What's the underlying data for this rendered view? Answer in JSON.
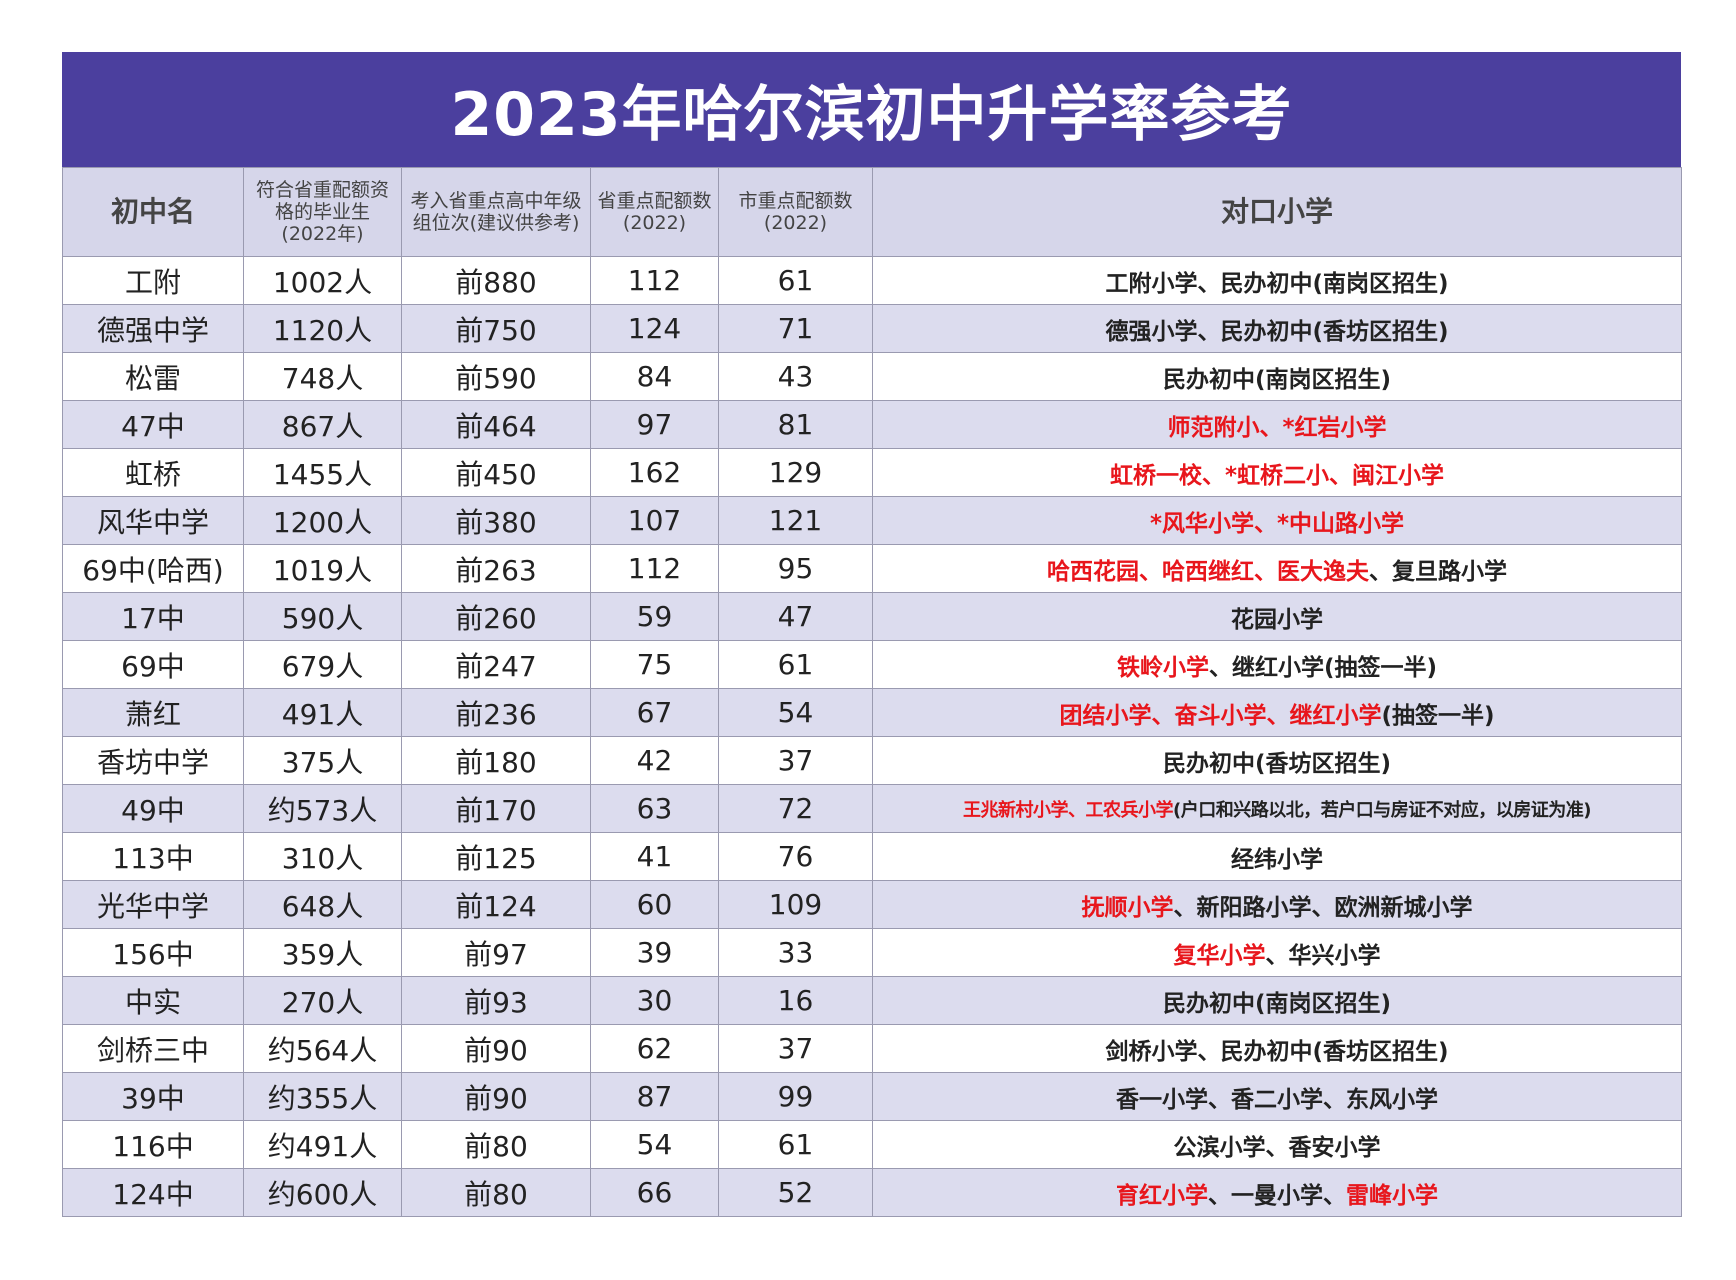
{
  "title": "2023年哈尔滨初中升学率参考",
  "table": {
    "header": [
      "初中名",
      "符合省重配额资格的毕业生(2022年)",
      "考入省重点高中年级组位次(建议供参考)",
      "省重点配额数(2022)",
      "市重点配额数(2022)",
      "对口小学"
    ],
    "rows": [
      [
        "工附",
        "1002人",
        "前880",
        112,
        61,
        [
          {
            "text": "工附小学、民办初中(南岗区招生)"
          }
        ]
      ],
      [
        "德强中学",
        "1120人",
        "前750",
        124,
        71,
        [
          {
            "text": "德强小学、民办初中(香坊区招生)"
          }
        ]
      ],
      [
        "松雷",
        "748人",
        "前590",
        84,
        43,
        [
          {
            "text": "民办初中(南岗区招生)"
          }
        ]
      ],
      [
        "47中",
        "867人",
        "前464",
        97,
        81,
        [
          {
            "text": "师范附小、*红岩小学",
            "color": "#e8161c"
          }
        ]
      ],
      [
        "虹桥",
        "1455人",
        "前450",
        162,
        129,
        [
          {
            "text": "虹桥一校、*虹桥二小、闽江小学",
            "color": "#e8161c"
          }
        ]
      ],
      [
        "风华中学",
        "1200人",
        "前380",
        107,
        121,
        [
          {
            "text": "*风华小学、*中山路小学",
            "color": "#e8161c"
          }
        ]
      ],
      [
        "69中(哈西)",
        "1019人",
        "前263",
        112,
        95,
        [
          {
            "text": "哈西花园、哈西继红、医大逸夫",
            "color": "#e8161c"
          },
          {
            "text": "、复旦路小学"
          }
        ]
      ],
      [
        "17中",
        "590人",
        "前260",
        59,
        47,
        [
          {
            "text": "花园小学"
          }
        ]
      ],
      [
        "69中",
        "679人",
        "前247",
        75,
        61,
        [
          {
            "text": "铁岭小学",
            "color": "#e8161c"
          },
          {
            "text": "、继红小学(抽签一半)"
          }
        ]
      ],
      [
        "萧红",
        "491人",
        "前236",
        67,
        54,
        [
          {
            "text": "团结小学、奋斗小学、继红小学",
            "color": "#e8161c"
          },
          {
            "text": "(抽签一半)"
          }
        ]
      ],
      [
        "香坊中学",
        "375人",
        "前180",
        42,
        37,
        [
          {
            "text": "民办初中(香坊区招生)"
          }
        ]
      ],
      [
        "49中",
        "约573人",
        "前170",
        63,
        72,
        [
          {
            "text": "王兆新村小学、工农兵小学",
            "color": "#e8161c"
          },
          {
            "text": "(户口和兴路以北，若户口与房证不对应，以房证为准)"
          }
        ]
      ],
      [
        "113中",
        "310人",
        "前125",
        41,
        76,
        [
          {
            "text": "经纬小学"
          }
        ]
      ],
      [
        "光华中学",
        "648人",
        "前124",
        60,
        109,
        [
          {
            "text": "抚顺小学",
            "color": "#e8161c"
          },
          {
            "text": "、新阳路小学、欧洲新城小学"
          }
        ]
      ],
      [
        "156中",
        "359人",
        "前97",
        39,
        33,
        [
          {
            "text": "复华小学",
            "color": "#e8161c"
          },
          {
            "text": "、华兴小学"
          }
        ]
      ],
      [
        "中实",
        "270人",
        "前93",
        30,
        16,
        [
          {
            "text": "民办初中(南岗区招生)"
          }
        ]
      ],
      [
        "剑桥三中",
        "约564人",
        "前90",
        62,
        37,
        [
          {
            "text": "剑桥小学、民办初中(香坊区招生)"
          }
        ]
      ],
      [
        "39中",
        "约355人",
        "前90",
        87,
        99,
        [
          {
            "text": "香一小学、香二小学、东风小学"
          }
        ]
      ],
      [
        "116中",
        "约491人",
        "前80",
        54,
        61,
        [
          {
            "text": "公滨小学、香安小学"
          }
        ]
      ],
      [
        "124中",
        "约600人",
        "前80",
        66,
        52,
        [
          {
            "text": "育红小学",
            "color": "#e8161c"
          },
          {
            "text": "、一曼小学、"
          },
          {
            "text": "雷峰小学",
            "color": "#e8161c"
          }
        ]
      ]
    ]
  }
}
